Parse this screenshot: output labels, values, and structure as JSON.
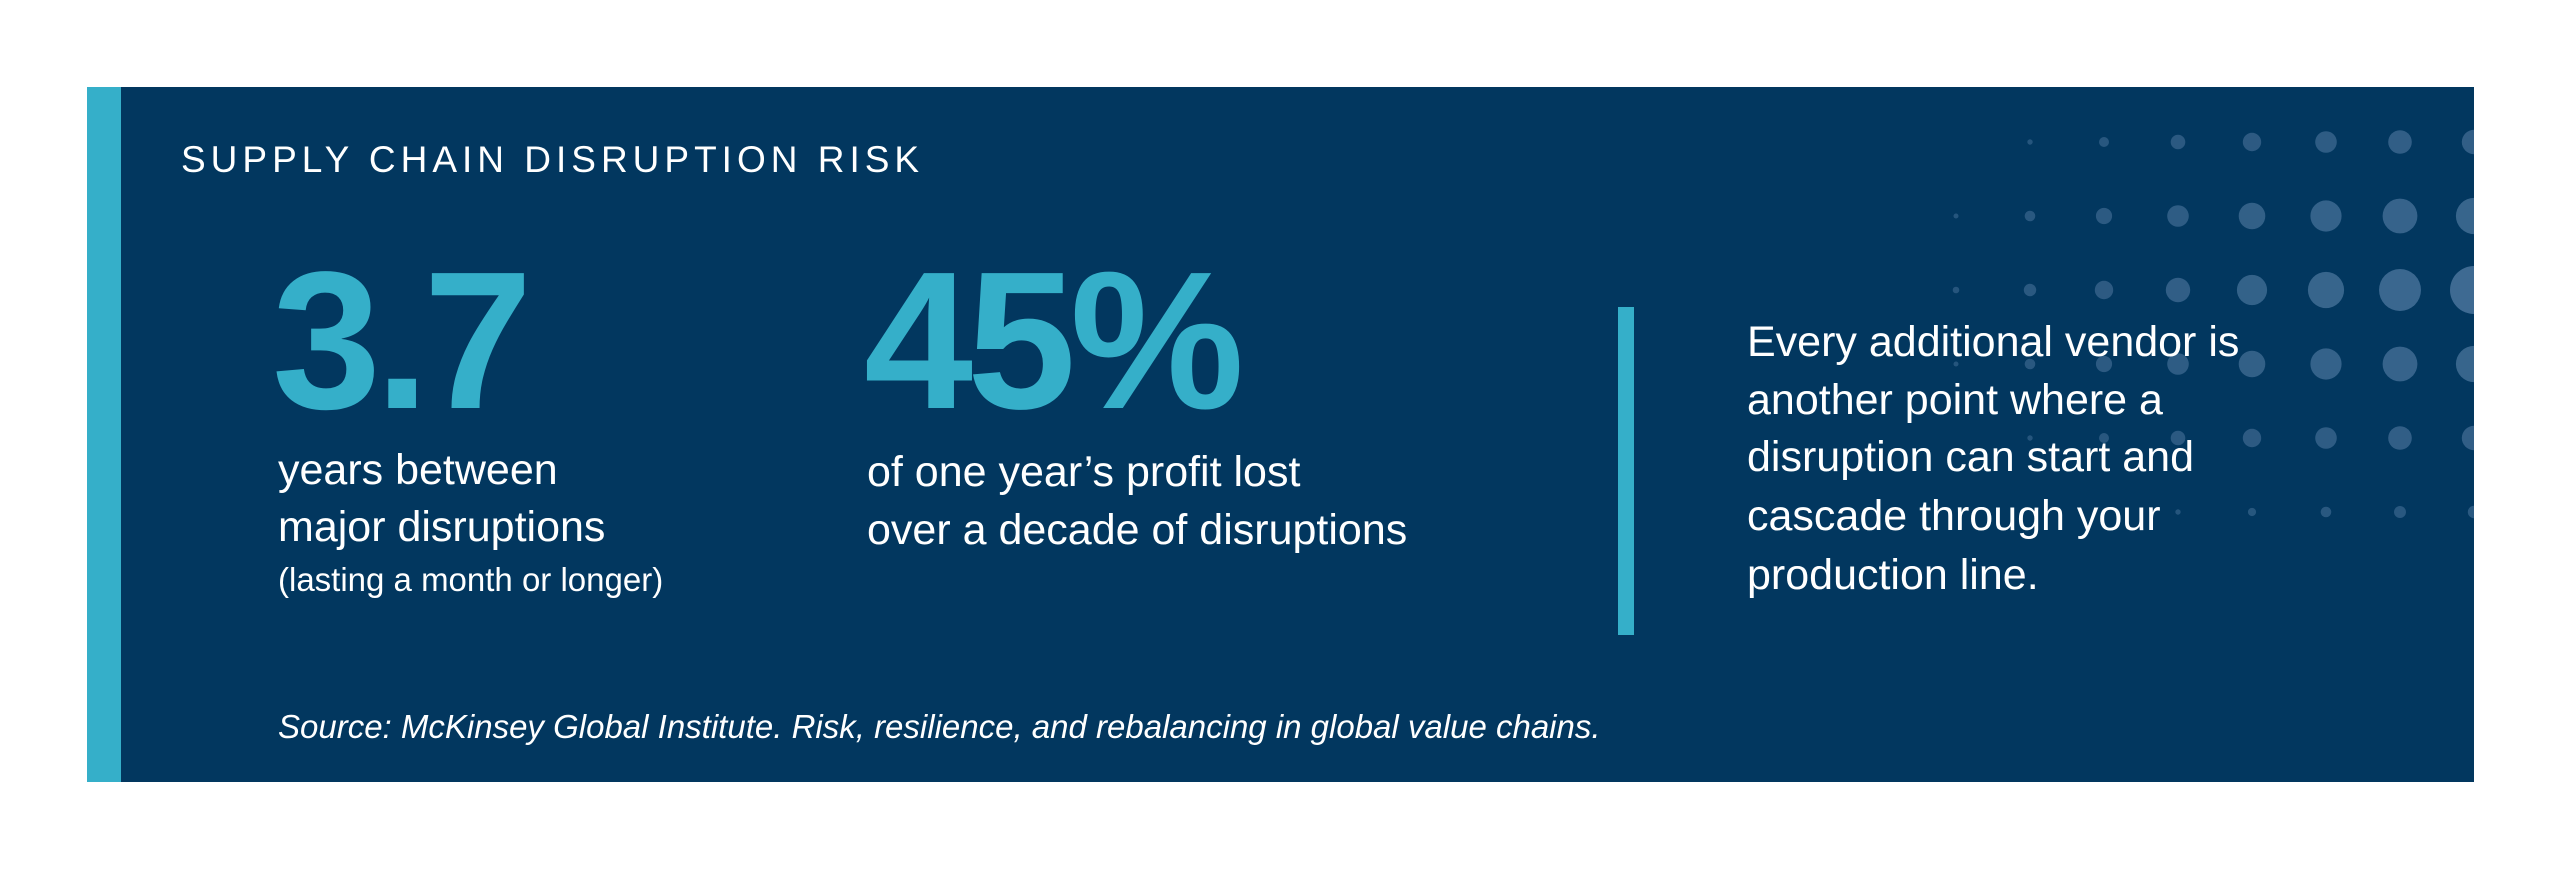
{
  "header": {
    "title": "SUPPLY CHAIN DISRUPTION RISK"
  },
  "stats": [
    {
      "figure": "3.7",
      "lines": [
        "years between",
        "major disruptions"
      ],
      "note": "(lasting a month or longer)"
    },
    {
      "figure": "45%",
      "lines": [
        "of one year’s profit lost",
        "over a decade of disruptions"
      ]
    }
  ],
  "quote": {
    "lines": [
      "Every additional vendor is",
      "another point where a",
      "disruption can start and",
      "cascade through your",
      "production line."
    ]
  },
  "source": "Source: McKinsey Global Institute. Risk, resilience, and rebalancing in global value chains."
}
